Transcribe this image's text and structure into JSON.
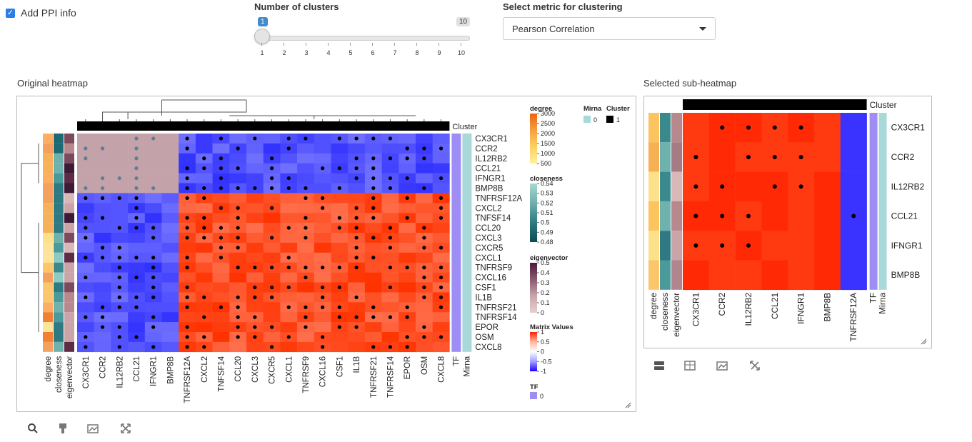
{
  "controls": {
    "add_ppi_label": "Add PPI info",
    "add_ppi_checked": true,
    "clusters_label": "Number of clusters",
    "clusters_value": "1",
    "clusters_max": "10",
    "clusters_ticks": [
      "1",
      "2",
      "3",
      "4",
      "5",
      "6",
      "7",
      "8",
      "9",
      "10"
    ],
    "metric_label": "Select metric for clustering",
    "metric_value": "Pearson Correlation"
  },
  "original_panel": {
    "title": "Original heatmap",
    "cluster_label": "Cluster",
    "rows": [
      "CX3CR1",
      "CCR2",
      "IL12RB2",
      "CCL21",
      "IFNGR1",
      "BMP8B",
      "TNFRSF12A",
      "CXCL2",
      "TNFSF14",
      "CCL20",
      "CXCL3",
      "CXCR5",
      "CXCL1",
      "TNFRSF9",
      "CXCL16",
      "CSF1",
      "IL1B",
      "TNFRSF21",
      "TNFRSF14",
      "EPOR",
      "OSM",
      "CXCL8"
    ],
    "cols": [
      "CX3CR1",
      "CCR2",
      "IL12RB2",
      "CCL21",
      "IFNGR1",
      "BMP8B",
      "TNFRSF12A",
      "CXCL2",
      "TNFSF14",
      "CCL20",
      "CXCL3",
      "CXCR5",
      "CXCL1",
      "TNFRSF9",
      "CXCL16",
      "CSF1",
      "IL1B",
      "TNFRSF21",
      "TNFRSF14",
      "EPOR",
      "OSM",
      "CXCL8"
    ],
    "annotation_cols": [
      "degree",
      "closeness",
      "eigenvector"
    ],
    "right_cols": [
      "TF",
      "Mirna"
    ],
    "legends": {
      "degree": {
        "title": "degree",
        "ticks": [
          "3000",
          "2500",
          "2000",
          "1500",
          "1000",
          "500"
        ]
      },
      "closeness": {
        "title": "closeness",
        "ticks": [
          "0.54",
          "0.53",
          "0.52",
          "0.51",
          "0.5",
          "0.49",
          "0.48"
        ]
      },
      "eigenvector": {
        "title": "eigenvector",
        "ticks": [
          "0.5",
          "0.4",
          "0.3",
          "0.2",
          "0.1",
          "0"
        ]
      },
      "matrix": {
        "title": "Matrix Values",
        "ticks": [
          "1",
          "0.5",
          "0",
          "-0.5",
          "-1"
        ]
      },
      "tf": {
        "title": "TF",
        "ticks": [
          "0"
        ]
      },
      "mirna": {
        "title": "Mirna",
        "ticks": [
          "0"
        ]
      },
      "cluster": {
        "title": "Cluster",
        "ticks": [
          "1"
        ]
      }
    }
  },
  "sub_panel": {
    "title": "Selected sub-heatmap",
    "cluster_label": "Cluster",
    "rows": [
      "CX3CR1",
      "CCR2",
      "IL12RB2",
      "CCL21",
      "IFNGR1",
      "BMP8B"
    ],
    "cols": [
      "CX3CR1",
      "CCR2",
      "IL12RB2",
      "CCL21",
      "IFNGR1",
      "BMP8B",
      "TNFRSF12A"
    ],
    "annotation_cols": [
      "degree",
      "closeness",
      "eigenvector"
    ],
    "right_cols": [
      "TF",
      "Mirna"
    ]
  },
  "colors": {
    "accent": "#2b7de9",
    "heat_pos": "#ff3300",
    "heat_neg": "#3333ff",
    "tf": "#9d8df5",
    "mirna": "#a8d8d8",
    "cluster": "#000000"
  },
  "toolbars": {
    "original": [
      "search-icon",
      "brush-icon",
      "image-icon",
      "expand-icon"
    ],
    "sub": [
      "split-icon",
      "table-icon",
      "image-icon",
      "expand-icon"
    ]
  }
}
